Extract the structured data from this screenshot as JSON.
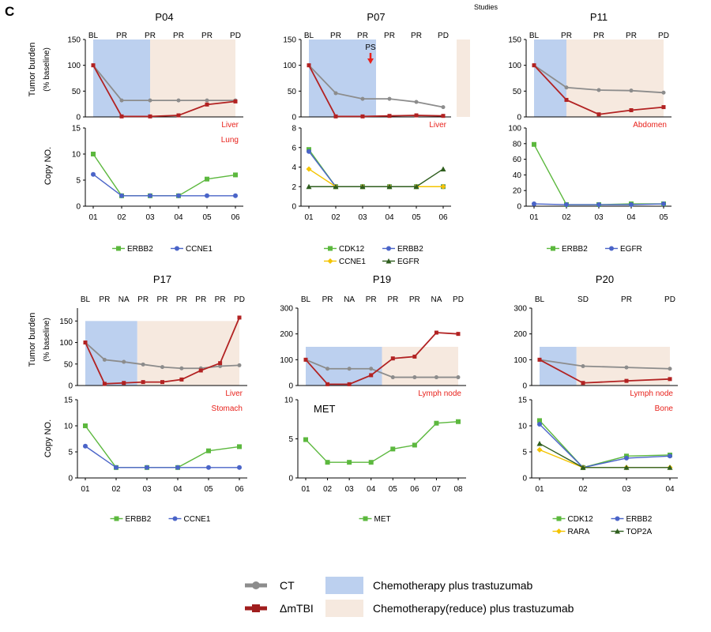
{
  "figure": {
    "panel_letter": "C",
    "studies_label": "Studies",
    "tumor_ylabel": "Tumor burden",
    "tumor_ylabel_sub": "(% baseline)",
    "copy_ylabel": "Copy NO."
  },
  "colors": {
    "ct": "#8c8c8c",
    "mtbi": "#b22222",
    "chemo": "#bcd0ef",
    "reduce": "#f6e9df",
    "site": "#e8221c",
    "arrow": "#e8221c"
  },
  "legend": {
    "ct_label": "CT",
    "mtbi_label": "ΔmTBI",
    "chemo_label": "Chemotherapy plus trastuzumab",
    "reduce_label": "Chemotherapy(reduce) plus trastuzumab"
  },
  "chart_data": [
    {
      "type": "line",
      "title": "P04",
      "phases": [
        "BL",
        "PR",
        "PR",
        "PR",
        "PR",
        "PD"
      ],
      "tumor": {
        "ylim": [
          0,
          150
        ],
        "yticks": [
          0,
          50,
          100,
          150
        ],
        "ct": [
          100,
          32,
          32,
          32,
          32,
          32
        ],
        "mtbi": [
          100,
          1,
          1,
          3,
          24,
          30
        ],
        "bands": [
          {
            "kind": "chemo",
            "from": 0,
            "to": 2
          },
          {
            "kind": "reduce",
            "from": 2,
            "to": 5
          }
        ]
      },
      "sites": [
        "Liver",
        "Lung"
      ],
      "copy": {
        "ylim": [
          0,
          15
        ],
        "yticks": [
          0,
          5,
          10,
          15
        ],
        "xticks": [
          "01",
          "02",
          "03",
          "04",
          "05",
          "06"
        ],
        "series": [
          {
            "name": "ERBB2",
            "color": "#5cb83e",
            "marker": "square",
            "values": [
              10,
              2,
              2,
              2,
              5.2,
              6
            ]
          },
          {
            "name": "CCNE1",
            "color": "#4a64c8",
            "marker": "circle",
            "values": [
              6.1,
              2,
              2,
              2,
              2,
              2
            ]
          }
        ]
      }
    },
    {
      "type": "line",
      "title": "P07",
      "phases": [
        "BL",
        "PR",
        "PR",
        "PR",
        "PR",
        "PD"
      ],
      "annotation": "PS",
      "tumor": {
        "ylim": [
          0,
          150
        ],
        "yticks": [
          0,
          50,
          100,
          150
        ],
        "ct": [
          100,
          46,
          35,
          35,
          29,
          19
        ],
        "mtbi": [
          100,
          1,
          1,
          2,
          3,
          2
        ],
        "bands": [
          {
            "kind": "chemo",
            "from": 0,
            "to": 2.5
          },
          {
            "kind": "reduce",
            "from": 5.5,
            "to": 6
          }
        ]
      },
      "sites": [
        "Liver"
      ],
      "copy": {
        "ylim": [
          0,
          8
        ],
        "yticks": [
          0,
          2,
          4,
          6,
          8
        ],
        "xticks": [
          "01",
          "02",
          "03",
          "04",
          "05",
          "06"
        ],
        "series": [
          {
            "name": "CDK12",
            "color": "#5cb83e",
            "marker": "square",
            "values": [
              5.8,
              2,
              2,
              2,
              2,
              2
            ]
          },
          {
            "name": "ERBB2",
            "color": "#4a64c8",
            "marker": "circle",
            "values": [
              5.6,
              2,
              2,
              2,
              2,
              2
            ]
          },
          {
            "name": "CCNE1",
            "color": "#f4c400",
            "marker": "diamond",
            "values": [
              3.8,
              2,
              2,
              2,
              2,
              2
            ]
          },
          {
            "name": "EGFR",
            "color": "#2f5e1e",
            "marker": "triangle",
            "values": [
              2,
              2,
              2,
              2,
              2,
              3.8
            ]
          }
        ]
      }
    },
    {
      "type": "line",
      "title": "P11",
      "phases": [
        "BL",
        "PR",
        "PR",
        "PR",
        "PD"
      ],
      "tumor": {
        "ylim": [
          0,
          150
        ],
        "yticks": [
          0,
          50,
          100,
          150
        ],
        "ct": [
          100,
          57,
          52,
          51,
          47
        ],
        "mtbi": [
          100,
          33,
          5,
          13,
          19
        ],
        "bands": [
          {
            "kind": "chemo",
            "from": 0,
            "to": 1
          },
          {
            "kind": "reduce",
            "from": 1,
            "to": 4
          }
        ]
      },
      "sites": [
        "Abdomen"
      ],
      "copy": {
        "ylim": [
          0,
          100
        ],
        "yticks": [
          0,
          20,
          40,
          60,
          80,
          100
        ],
        "xticks": [
          "01",
          "02",
          "03",
          "04",
          "05"
        ],
        "series": [
          {
            "name": "ERBB2",
            "color": "#5cb83e",
            "marker": "square",
            "values": [
              79,
              2,
              2,
              3,
              3
            ]
          },
          {
            "name": "EGFR",
            "color": "#4a64c8",
            "marker": "circle",
            "values": [
              3,
              2,
              2,
              2,
              3
            ]
          }
        ]
      }
    },
    {
      "type": "line",
      "title": "P17",
      "phases": [
        "BL",
        "PR",
        "NA",
        "PR",
        "PR",
        "PR",
        "PR",
        "PR",
        "PD"
      ],
      "tumor": {
        "ylim": [
          0,
          180
        ],
        "yticks": [
          0,
          50,
          100,
          150
        ],
        "ct": [
          100,
          60,
          55,
          49,
          43,
          40,
          40,
          45,
          47
        ],
        "mtbi": [
          100,
          4,
          6,
          8,
          8,
          14,
          35,
          52,
          158
        ],
        "bands": [
          {
            "kind": "chemo",
            "from": 0,
            "to": 2.7
          },
          {
            "kind": "reduce",
            "from": 2.7,
            "to": 8
          }
        ]
      },
      "sites": [
        "Liver",
        "Stomach"
      ],
      "copy": {
        "ylim": [
          0,
          15
        ],
        "yticks": [
          0,
          5,
          10,
          15
        ],
        "xticks": [
          "01",
          "02",
          "03",
          "04",
          "05",
          "06"
        ],
        "series": [
          {
            "name": "ERBB2",
            "color": "#5cb83e",
            "marker": "square",
            "values": [
              10,
              2,
              2,
              2,
              5.2,
              6
            ]
          },
          {
            "name": "CCNE1",
            "color": "#4a64c8",
            "marker": "circle",
            "values": [
              6.1,
              2,
              2,
              2,
              2,
              2
            ]
          }
        ]
      }
    },
    {
      "type": "line",
      "title": "P19",
      "phases": [
        "BL",
        "PR",
        "NA",
        "PR",
        "PR",
        "PR",
        "NA",
        "PD"
      ],
      "tumor": {
        "ylim": [
          0,
          300
        ],
        "yticks": [
          0,
          100,
          200,
          300
        ],
        "ct": [
          100,
          65,
          65,
          65,
          32,
          32,
          32,
          32
        ],
        "mtbi": [
          100,
          5,
          5,
          40,
          105,
          112,
          205,
          200
        ],
        "bands": [
          {
            "kind": "chemo",
            "from": 0,
            "to": 3.5
          },
          {
            "kind": "reduce",
            "from": 3.5,
            "to": 7
          }
        ]
      },
      "sites": [
        "Lymph node"
      ],
      "copy_label": "MET",
      "copy": {
        "ylim": [
          0,
          10
        ],
        "yticks": [
          0,
          5,
          10
        ],
        "xticks": [
          "01",
          "02",
          "03",
          "04",
          "05",
          "06",
          "07",
          "08"
        ],
        "series": [
          {
            "name": "MET",
            "color": "#5cb83e",
            "marker": "square",
            "values": [
              4.9,
              2,
              2,
              2,
              3.7,
              4.2,
              7,
              7.2
            ]
          }
        ]
      }
    },
    {
      "type": "line",
      "title": "P20",
      "phases": [
        "BL",
        "SD",
        "PR",
        "PD"
      ],
      "tumor": {
        "ylim": [
          0,
          300
        ],
        "yticks": [
          0,
          100,
          200,
          300
        ],
        "ct": [
          100,
          75,
          70,
          65
        ],
        "mtbi": [
          100,
          10,
          18,
          25
        ],
        "bands": [
          {
            "kind": "chemo",
            "from": 0,
            "to": 0.85
          },
          {
            "kind": "reduce",
            "from": 0.85,
            "to": 3
          }
        ]
      },
      "sites": [
        "Lymph node",
        "Bone"
      ],
      "copy": {
        "ylim": [
          0,
          15
        ],
        "yticks": [
          0,
          5,
          10,
          15
        ],
        "xticks": [
          "01",
          "02",
          "03",
          "04"
        ],
        "series": [
          {
            "name": "CDK12",
            "color": "#5cb83e",
            "marker": "square",
            "values": [
              11,
              2,
              4.2,
              4.4
            ]
          },
          {
            "name": "ERBB2",
            "color": "#4a64c8",
            "marker": "circle",
            "values": [
              10.3,
              2,
              3.8,
              4.2
            ]
          },
          {
            "name": "RARA",
            "color": "#f4c400",
            "marker": "diamond",
            "values": [
              5.4,
              2,
              2,
              2
            ]
          },
          {
            "name": "TOP2A",
            "color": "#2f5e1e",
            "marker": "triangle",
            "values": [
              6.6,
              2,
              2,
              2
            ]
          }
        ]
      }
    }
  ]
}
